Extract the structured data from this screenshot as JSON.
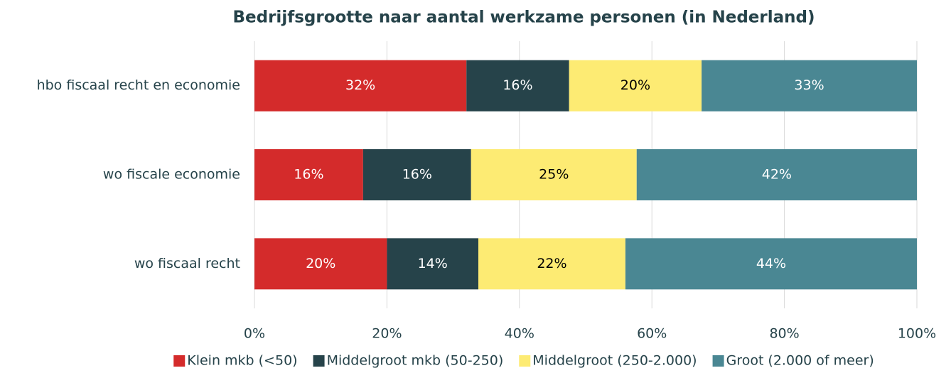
{
  "chart_data": {
    "type": "stacked_bar_horizontal",
    "title": "Bedrijfsgrootte naar aantal werkzame personen (in Nederland)",
    "categories": [
      "hbo fiscaal recht en economie",
      "wo fiscale economie",
      "wo fiscaal recht"
    ],
    "series": [
      {
        "name": "Klein mkb (<50)",
        "color": "#d42b2b",
        "values": [
          32.0,
          16.4,
          20.0
        ],
        "value_labels": [
          "32%",
          "16%",
          "20%"
        ]
      },
      {
        "name": "Middelgroot mkb (50-250)",
        "color": "#26434a",
        "values": [
          15.5,
          16.3,
          13.8
        ],
        "value_labels": [
          "16%",
          "16%",
          "14%"
        ]
      },
      {
        "name": "Middelgroot (250-2.000)",
        "color": "#fdeb73",
        "values": [
          20.0,
          25.0,
          22.2
        ],
        "value_labels": [
          "20%",
          "25%",
          "22%"
        ]
      },
      {
        "name": "Groot (2.000 of meer)",
        "color": "#4a8793",
        "values": [
          32.5,
          42.3,
          44.0
        ],
        "value_labels": [
          "33%",
          "42%",
          "44%"
        ]
      }
    ],
    "xlim": [
      0,
      100
    ],
    "xticks": [
      {
        "value": 0,
        "label": "0%"
      },
      {
        "value": 20,
        "label": "20%"
      },
      {
        "value": 40,
        "label": "40%"
      },
      {
        "value": 60,
        "label": "60%"
      },
      {
        "value": 80,
        "label": "80%"
      },
      {
        "value": 100,
        "label": "100%"
      }
    ],
    "grid": true,
    "legend": "bottom"
  }
}
